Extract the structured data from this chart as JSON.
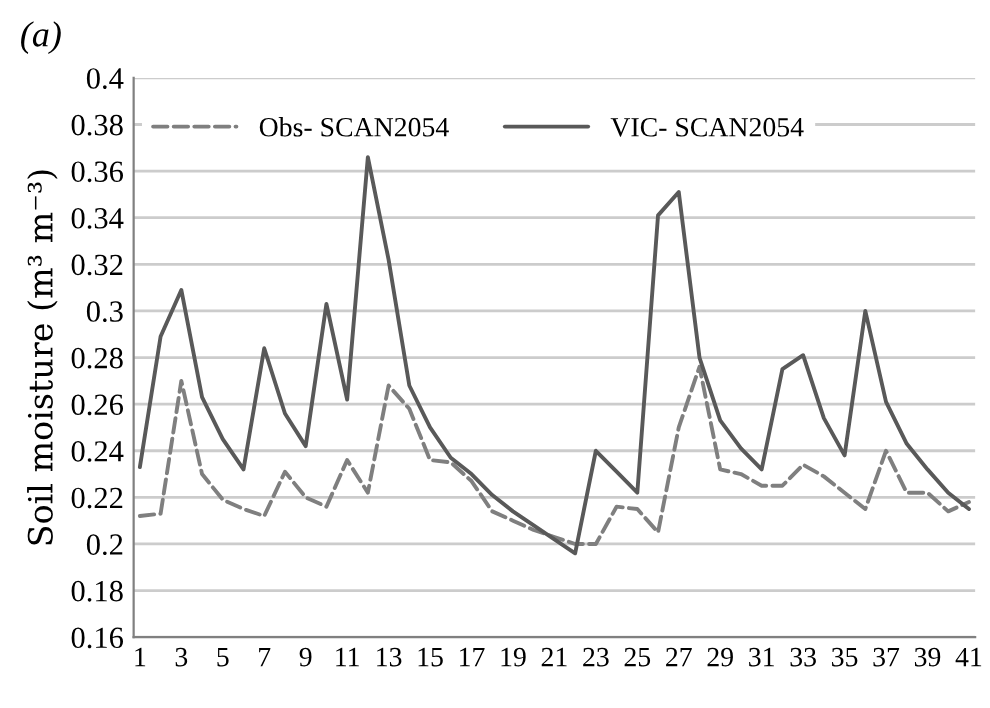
{
  "chart_data": {
    "type": "line",
    "title": "(a)",
    "ylabel": "Soil moisture (m³ m⁻³)",
    "categories": [
      "1",
      null,
      "3",
      null,
      "5",
      null,
      "7",
      null,
      "9",
      null,
      "11",
      null,
      "13",
      null,
      "15",
      null,
      "17",
      null,
      "19",
      null,
      "21",
      null,
      "23",
      null,
      "25",
      null,
      "27",
      null,
      "29",
      null,
      "31",
      null,
      "33",
      null,
      "35",
      null,
      "37",
      null,
      "39",
      null,
      "41"
    ],
    "series": [
      {
        "name": "Obs- SCAN2054",
        "color": "#7f7f7f",
        "line_style": "dashed",
        "values": [
          0.212,
          0.213,
          0.27,
          0.23,
          0.219,
          0.215,
          0.212,
          0.231,
          0.22,
          0.216,
          0.236,
          0.222,
          0.268,
          0.258,
          0.236,
          0.235,
          0.227,
          0.214,
          0.21,
          0.206,
          0.203,
          0.2,
          0.2,
          0.216,
          0.215,
          0.205,
          0.25,
          0.276,
          0.232,
          0.23,
          0.225,
          0.225,
          0.234,
          0.229,
          0.222,
          0.215,
          0.24,
          0.222,
          0.222,
          0.214,
          0.218
        ]
      },
      {
        "name": "VIC- SCAN2054",
        "color": "#595959",
        "line_style": "solid",
        "values": [
          0.233,
          0.289,
          0.309,
          0.263,
          0.245,
          0.232,
          0.284,
          0.256,
          0.242,
          0.303,
          0.262,
          0.366,
          0.322,
          0.268,
          0.25,
          0.237,
          0.23,
          0.221,
          0.214,
          0.208,
          0.202,
          0.196,
          0.24,
          0.231,
          0.222,
          0.341,
          0.351,
          0.28,
          0.253,
          0.241,
          0.232,
          0.275,
          0.281,
          0.254,
          0.238,
          0.3,
          0.261,
          0.243,
          0.232,
          0.222,
          0.215
        ]
      }
    ],
    "ylim": [
      0.16,
      0.4
    ],
    "yticks": [
      0.16,
      0.18,
      0.2,
      0.22,
      0.24,
      0.26,
      0.28,
      0.3,
      0.32,
      0.34,
      0.36,
      0.38,
      0.4
    ],
    "grid": "y",
    "legend": "top left",
    "marker": "none"
  }
}
